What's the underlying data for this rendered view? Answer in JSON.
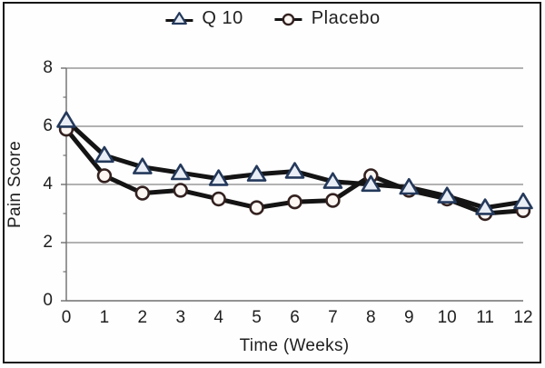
{
  "figure": {
    "background": "#fefefe",
    "border_color": "#161616",
    "text_color": "#1f1f1f"
  },
  "legend": {
    "position": "top-center",
    "items": [
      {
        "label": "Q 10",
        "marker": "triangle-marker"
      },
      {
        "label": "Placebo",
        "marker": "circle-marker"
      }
    ]
  },
  "chart_data": {
    "type": "line",
    "title": "",
    "xlabel": "Time (Weeks)",
    "ylabel": "Pain Score",
    "x": [
      0,
      1,
      2,
      3,
      4,
      5,
      6,
      7,
      8,
      9,
      10,
      11,
      12
    ],
    "xlim": [
      0,
      12
    ],
    "ylim": [
      0,
      8
    ],
    "y_major_ticks": [
      0,
      2,
      4,
      6,
      8
    ],
    "y_minor_ticks": [
      1,
      3,
      5,
      7
    ],
    "grid": "horizontal-major-only",
    "grid_color": "#858585",
    "axis_color": "#6e6e6e",
    "line_color": "#141414",
    "line_width": 5,
    "legend_position": "top-center",
    "series": [
      {
        "name": "Q 10",
        "marker": "triangle",
        "marker_fill": "#e9eef6",
        "marker_stroke": "#24395b",
        "values": [
          6.2,
          5.0,
          4.6,
          4.4,
          4.2,
          4.35,
          4.45,
          4.1,
          4.0,
          3.9,
          3.6,
          3.2,
          3.4
        ]
      },
      {
        "name": "Placebo",
        "marker": "circle",
        "marker_fill": "#fdf7f4",
        "marker_stroke": "#33211f",
        "values": [
          5.9,
          4.3,
          3.7,
          3.8,
          3.5,
          3.2,
          3.4,
          3.45,
          4.3,
          3.8,
          3.5,
          3.0,
          3.1
        ]
      }
    ]
  }
}
